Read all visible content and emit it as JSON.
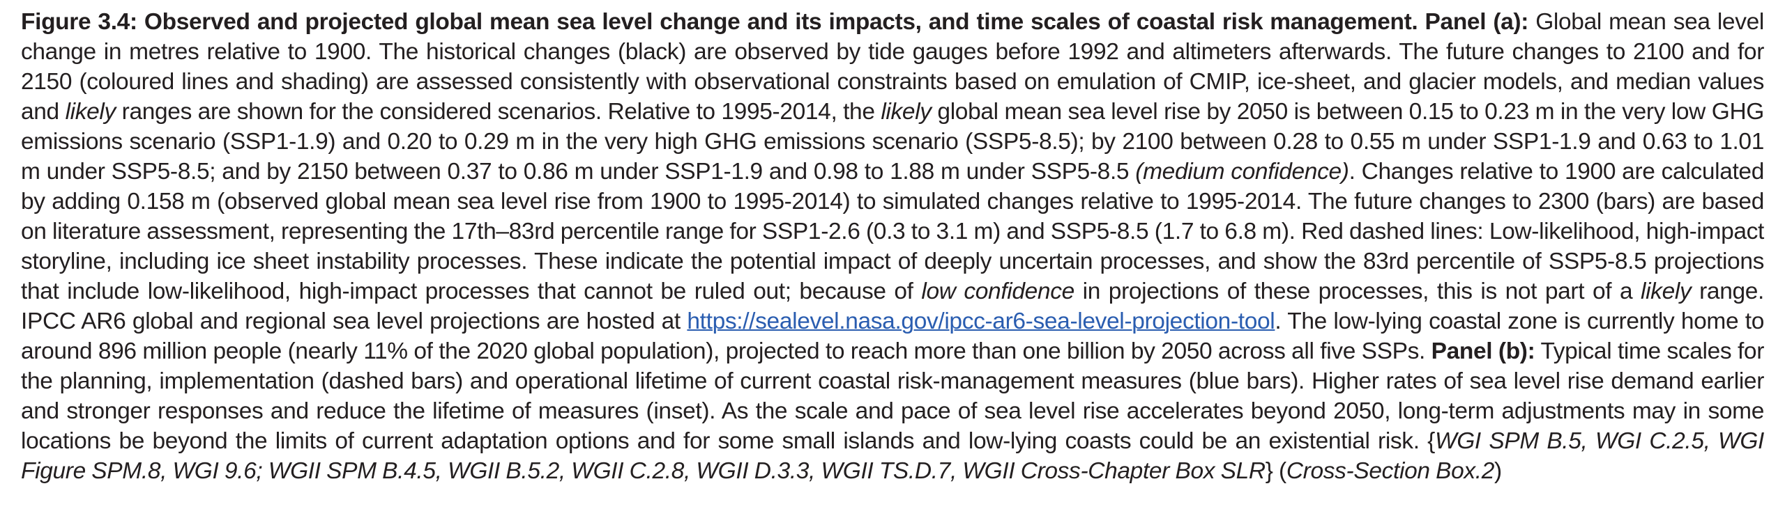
{
  "caption": {
    "figure_label": "Figure 3.4: Observed and projected global mean sea level change and its impacts, and time scales of coastal risk management.",
    "panel_a_label": "Panel (a):",
    "a1": "Global mean sea level change in metres relative to 1900. The historical changes (black) are observed by tide gauges before 1992 and altimeters afterwards. The future changes to 2100 and for 2150 (coloured lines and shading) are assessed consistently with observational constraints based on emulation of CMIP, ice-sheet, and glacier models, and median values and",
    "likely_1": "likely",
    "a2": "ranges are shown for the considered scenarios. Relative to 1995-2014, the",
    "likely_2": "likely",
    "a3": "global mean sea level rise by 2050 is between 0.15 to 0.23 m in the very low GHG emissions scenario (SSP1-1.9) and 0.20 to 0.29 m in the very high GHG emissions scenario (SSP5-8.5); by 2100 between 0.28 to 0.55 m under SSP1-1.9 and 0.63 to 1.01 m under SSP5-8.5; and by 2150 between 0.37 to 0.86 m under SSP1-1.9 and 0.98 to 1.88 m under SSP5-8.5",
    "medium_confidence": "(medium confidence)",
    "a4": ". Changes relative to 1900 are calculated by adding 0.158 m (observed global mean sea level rise from 1900 to 1995-2014) to simulated changes relative to 1995-2014. The future changes to 2300 (bars) are based on literature assessment, representing the 17th–83rd percentile range for SSP1-2.6 (0.3 to 3.1 m) and SSP5-8.5 (1.7 to 6.8 m). Red dashed lines: Low-likelihood, high-impact storyline, including ice sheet instability processes. These indicate the potential impact of deeply uncertain processes, and show the 83rd percentile of SSP5-8.5 projections that include low-likelihood, high-impact processes that cannot be ruled out; because of",
    "low_confidence": "low confidence",
    "a5": "in projections of these processes, this is not part of a",
    "likely_3": "likely",
    "a6": "range. IPCC AR6 global and regional sea level projections are hosted at",
    "link_text": "https://sealevel.nasa.gov/ipcc-ar6-sea-level-projection-tool",
    "a7": ". The low-lying coastal zone is currently home to around 896 million people (nearly 11% of the 2020 global population), projected to reach more than one billion by 2050 across all five SSPs.",
    "panel_b_label": "Panel (b):",
    "b1": "Typical time scales for the planning, implementation (dashed bars) and operational lifetime of current coastal risk-management measures (blue bars). Higher rates of sea level rise demand earlier and stronger responses and reduce the lifetime of measures (inset). As the scale and pace of sea level rise accelerates beyond 2050, long-term adjustments may in some locations be beyond the limits of current adaptation options and for some small islands and low-lying coasts could be an existential risk. {",
    "references": "WGI SPM B.5, WGI C.2.5, WGI Figure SPM.8, WGI 9.6; WGII SPM B.4.5, WGII B.5.2, WGII C.2.8, WGII D.3.3, WGII TS.D.7, WGII Cross-Chapter Box SLR",
    "b2": "} (",
    "cross_section": "Cross-Section Box.2",
    "b3": ")"
  }
}
